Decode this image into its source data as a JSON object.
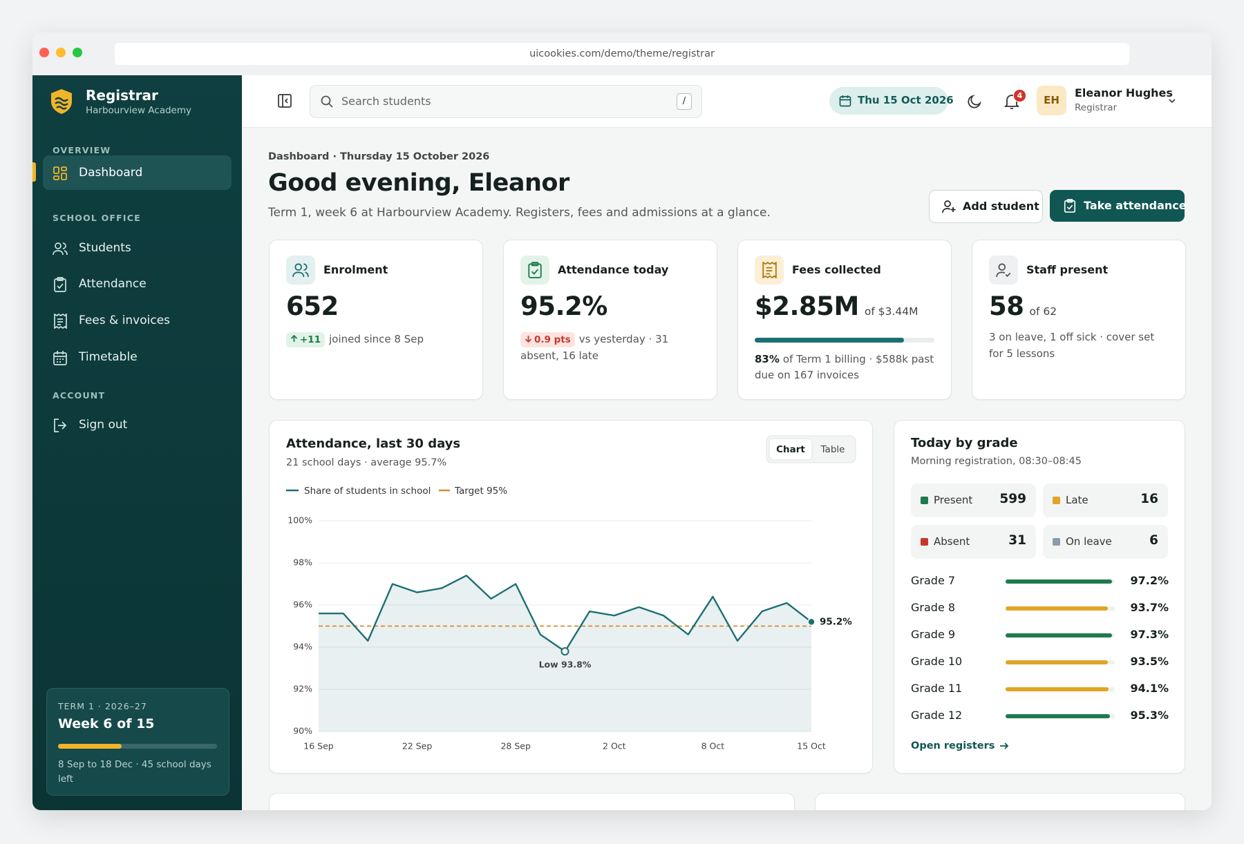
{
  "browser": {
    "url": "uicookies.com/demo/theme/registrar"
  },
  "sidebar": {
    "brand": "Registrar",
    "school": "Harbourview Academy",
    "sections": [
      {
        "title": "OVERVIEW",
        "items": [
          "Dashboard"
        ]
      },
      {
        "title": "SCHOOL OFFICE",
        "items": [
          "Students",
          "Attendance",
          "Fees & invoices",
          "Timetable"
        ]
      },
      {
        "title": "ACCOUNT",
        "items": [
          "Sign out"
        ]
      }
    ],
    "term": {
      "label": "TERM 1 · 2026–27",
      "title": "Week 6 of 15",
      "week": 6,
      "weeks": 15,
      "note": "8 Sep to 18 Dec · 45 school days left"
    }
  },
  "header": {
    "search": "Search students",
    "shortcut": "/",
    "date": "Thu 15 Oct 2026",
    "notifications": "4",
    "initials": "EH",
    "user": "Eleanor Hughes",
    "role": "Registrar"
  },
  "page": {
    "breadcrumb": "Dashboard · Thursday 15 October 2026",
    "greeting": "Good evening, Eleanor",
    "subtitle": "Term 1, week 6 at Harbourview Academy. Registers, fees and admissions at a glance.",
    "actions": [
      "Add student",
      "Take attendance"
    ]
  },
  "stats": [
    {
      "label": "Enrolment",
      "value": "652",
      "delta": "+11",
      "note": "joined since 8 Sep"
    },
    {
      "label": "Attendance today",
      "value": "95.2%",
      "delta": "0.9 pts",
      "note": "vs yesterday · 31 absent, 16 late"
    },
    {
      "label": "Fees collected",
      "value": "$2.85M",
      "of": "of $3.44M",
      "share": 83,
      "share_label": "83%",
      "xlim": [
        0,
        100
      ],
      "note": "of Term 1 billing · $588k past due on 167 invoices"
    },
    {
      "label": "Staff present",
      "value": "58",
      "of": "of 62",
      "note": "3 on leave, 1 off sick · cover set for 5 lessons"
    }
  ],
  "chart_data": {
    "type": "line",
    "title": "Attendance, last 30 days",
    "subtitle": "21 school days · average 95.7%",
    "toggle": [
      "Chart",
      "Table"
    ],
    "categories": [
      "16 Sep",
      null,
      null,
      null,
      "22 Sep",
      null,
      null,
      null,
      "28 Sep",
      null,
      null,
      null,
      "2 Oct",
      null,
      null,
      null,
      "8 Oct",
      null,
      null,
      null,
      "15 Oct"
    ],
    "series": [
      {
        "name": "Share of students in school",
        "color": "#1d6f73",
        "values": [
          95.6,
          95.6,
          94.3,
          97.0,
          96.6,
          96.8,
          97.4,
          96.3,
          97.0,
          94.6,
          93.8,
          95.7,
          95.5,
          95.9,
          95.5,
          94.6,
          96.4,
          94.3,
          95.7,
          96.1,
          95.2
        ],
        "value_labels": [
          null,
          null,
          null,
          null,
          null,
          null,
          null,
          null,
          null,
          null,
          null,
          null,
          null,
          null,
          null,
          null,
          null,
          null,
          null,
          null,
          "95.2%"
        ]
      }
    ],
    "target": {
      "name": "Target 95%",
      "value": 95,
      "color": "#d98a2b"
    },
    "annotations": [
      "Low 93.8%"
    ],
    "ylim": [
      90,
      100
    ],
    "yticks": [
      {
        "value": 90,
        "label": "90%"
      },
      {
        "value": 92,
        "label": "92%"
      },
      {
        "value": 94,
        "label": "94%"
      },
      {
        "value": 96,
        "label": "96%"
      },
      {
        "value": 98,
        "label": "98%"
      },
      {
        "value": 100,
        "label": "100%"
      }
    ],
    "grid": true
  },
  "grades_panel": {
    "title": "Today by grade",
    "subtitle": "Morning registration, 08:30–08:45",
    "status": [
      {
        "name": "Present",
        "value": 599,
        "color": "#1f7a4d"
      },
      {
        "name": "Late",
        "value": 16,
        "color": "#e0a526"
      },
      {
        "name": "Absent",
        "value": 31,
        "color": "#c8372d"
      },
      {
        "name": "On leave",
        "value": 6,
        "color": "#8a9bb0"
      }
    ],
    "grades": {
      "xlim": [
        0,
        100
      ],
      "items": [
        {
          "name": "Grade 7",
          "value": 97.2,
          "label": "97.2%",
          "color": "#1f7a4d"
        },
        {
          "name": "Grade 8",
          "value": 93.7,
          "label": "93.7%",
          "color": "#e0a526"
        },
        {
          "name": "Grade 9",
          "value": 97.3,
          "label": "97.3%",
          "color": "#1f7a4d"
        },
        {
          "name": "Grade 10",
          "value": 93.5,
          "label": "93.5%",
          "color": "#e0a526"
        },
        {
          "name": "Grade 11",
          "value": 94.1,
          "label": "94.1%",
          "color": "#e0a526"
        },
        {
          "name": "Grade 12",
          "value": 95.3,
          "label": "95.3%",
          "color": "#1f7a4d"
        }
      ]
    },
    "link": "Open registers"
  }
}
